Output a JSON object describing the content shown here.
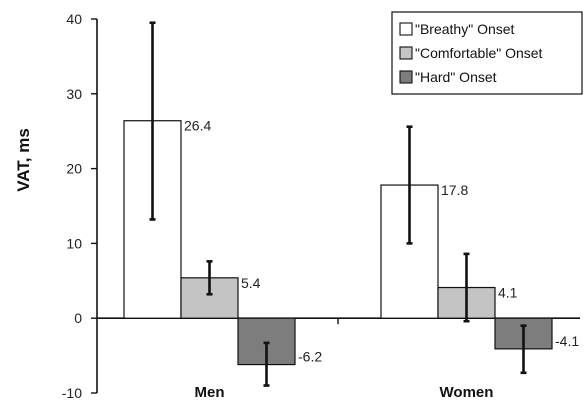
{
  "chart_data": {
    "type": "bar",
    "ylabel": "VAT, ms",
    "xlabel": "",
    "ylim": [
      -10,
      40
    ],
    "yticks": [
      -10,
      0,
      10,
      20,
      30,
      40
    ],
    "categories": [
      "Men",
      "Women"
    ],
    "legend_position": "top-right",
    "grid": false,
    "series": [
      {
        "name": "\"Breathy\" Onset",
        "color": "#ffffff",
        "values": [
          26.4,
          17.8
        ],
        "labels": [
          "26.4",
          "17.8"
        ],
        "err_low": [
          13.2,
          10.0
        ],
        "err_high": [
          39.5,
          25.6
        ]
      },
      {
        "name": "\"Comfortable\" Onset",
        "color": "#c4c4c4",
        "values": [
          5.4,
          4.1
        ],
        "labels": [
          "5.4",
          "4.1"
        ],
        "err_low": [
          3.2,
          -0.4
        ],
        "err_high": [
          7.6,
          8.6
        ]
      },
      {
        "name": "\"Hard\" Onset",
        "color": "#7d7d7d",
        "values": [
          -6.2,
          -4.1
        ],
        "labels": [
          "-6.2",
          "-4.1"
        ],
        "err_low": [
          -9.0,
          -7.3
        ],
        "err_high": [
          -3.3,
          -1.0
        ]
      }
    ]
  }
}
